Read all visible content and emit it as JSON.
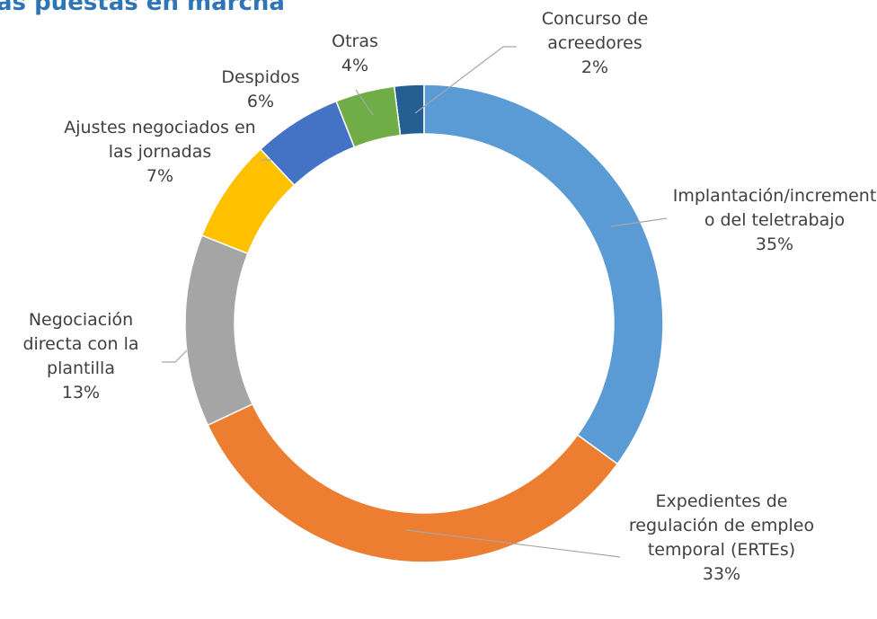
{
  "chart_data": {
    "type": "donut",
    "title": "as puestas en marcha",
    "categories": [
      "Implantación/incremento del teletrabajo",
      "Expedientes de regulación de empleo temporal (ERTEs)",
      "Negociación directa con la plantilla",
      "Ajustes negociados en las jornadas",
      "Despidos",
      "Otras",
      "Concurso de acreedores"
    ],
    "values": [
      35,
      33,
      13,
      7,
      6,
      4,
      2
    ],
    "value_labels": [
      "35%",
      "33%",
      "13%",
      "7%",
      "6%",
      "4%",
      "2%"
    ],
    "colors": [
      "#5b9bd5",
      "#ed7d31",
      "#a5a5a5",
      "#ffc000",
      "#4472c4",
      "#70ad47",
      "#255e91"
    ]
  }
}
